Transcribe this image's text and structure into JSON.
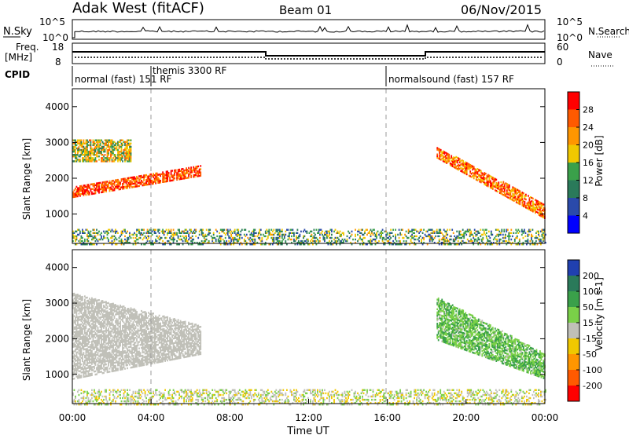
{
  "header": {
    "site": "Adak West (fitACF)",
    "beam": "Beam 01",
    "date": "06/Nov/2015"
  },
  "top_panels": {
    "nsky_label": "N.Sky",
    "nsearch_label": "N.Search",
    "nsky_ticks": [
      "10^5",
      "10^0"
    ],
    "nsearch_ticks": [
      "10^5",
      "10^0"
    ],
    "freq_label": [
      "Freq.",
      "[MHz]"
    ],
    "freq_ticks": [
      "18",
      "8"
    ],
    "nave_label": "Nave",
    "nave_ticks": [
      "60",
      "0"
    ],
    "cpid_label": "CPID",
    "cpid_segments": [
      "normal (fast) 151 RF",
      "themis 3300 RF",
      "normalsound (fast) 157 RF"
    ]
  },
  "power_panel": {
    "ylabel": "Slant Range [km]",
    "yticks": [
      "4000",
      "3000",
      "2000",
      "1000"
    ],
    "colorbar_label": "Power [dB]",
    "colorbar_ticks": [
      "28",
      "24",
      "20",
      "16",
      "12",
      "8",
      "4"
    ],
    "colorbar_colors": [
      "#ff0000",
      "#ff5a00",
      "#ff9600",
      "#f0c800",
      "#3aa04a",
      "#2a7a5a",
      "#2a4aaa",
      "#0000ff"
    ]
  },
  "velocity_panel": {
    "ylabel": "Slant Range [km]",
    "yticks": [
      "4000",
      "3000",
      "2000",
      "1000"
    ],
    "colorbar_label": "Velocity [m s-1]",
    "colorbar_ticks": [
      "200",
      "100",
      "50",
      "15",
      "-15",
      "-50",
      "-100",
      "-200"
    ],
    "colorbar_colors": [
      "#2040b0",
      "#2a7a5a",
      "#3aa04a",
      "#7ad048",
      "#c0c0b8",
      "#f0c800",
      "#ff9600",
      "#ff5a00",
      "#ff0000"
    ]
  },
  "xaxis": {
    "ticks": [
      "00:00",
      "04:00",
      "08:00",
      "12:00",
      "16:00",
      "20:00",
      "00:00"
    ],
    "label": "Time UT"
  },
  "chart_data": [
    {
      "type": "heatmap",
      "title": "Adak West (fitACF) Beam 01 06/Nov/2015",
      "quantity": "Power",
      "xlabel": "Time UT",
      "ylabel": "Slant Range [km]",
      "x_hours_ut": [
        0,
        24
      ],
      "ylim": [
        180,
        4500
      ],
      "clim_db": [
        0,
        30
      ],
      "colorbar_label": "Power [dB]",
      "scatter_bands": [
        {
          "start_ut": "00:00",
          "end_ut": "06:30",
          "range_km_start": [
            1500,
            1800
          ],
          "range_km_end": [
            2100,
            2400
          ],
          "power_db": [
            20,
            30
          ]
        },
        {
          "start_ut": "00:00",
          "end_ut": "03:00",
          "range_km": [
            2500,
            3100
          ],
          "power_db": [
            8,
            24
          ]
        },
        {
          "start_ut": "18:30",
          "end_ut": "24:00",
          "range_km_start": [
            2600,
            2900
          ],
          "range_km_end": [
            900,
            1300
          ],
          "power_db": [
            16,
            30
          ]
        },
        {
          "start_ut": "00:00",
          "end_ut": "24:00",
          "range_km": [
            180,
            600
          ],
          "power_db": [
            4,
            20
          ]
        }
      ]
    },
    {
      "type": "heatmap",
      "title": "Adak West (fitACF) Beam 01 06/Nov/2015",
      "quantity": "Velocity",
      "xlabel": "Time UT",
      "ylabel": "Slant Range [km]",
      "x_hours_ut": [
        0,
        24
      ],
      "ylim": [
        180,
        4500
      ],
      "clim_ms": [
        -200,
        200
      ],
      "colorbar_label": "Velocity [m s-1]",
      "scatter_bands": [
        {
          "start_ut": "00:00",
          "end_ut": "06:30",
          "range_km_start": [
            900,
            3300
          ],
          "range_km_end": [
            1600,
            2400
          ],
          "velocity_ms": [
            -15,
            15
          ]
        },
        {
          "start_ut": "18:30",
          "end_ut": "24:00",
          "range_km_start": [
            2000,
            3200
          ],
          "range_km_end": [
            900,
            1600
          ],
          "velocity_ms": [
            15,
            100
          ]
        },
        {
          "start_ut": "00:00",
          "end_ut": "24:00",
          "range_km": [
            180,
            600
          ],
          "velocity_ms": [
            -50,
            50
          ]
        }
      ]
    }
  ]
}
